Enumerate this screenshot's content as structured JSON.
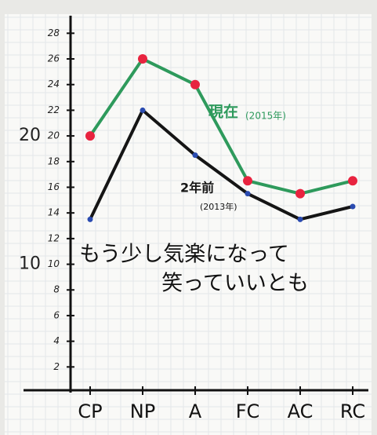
{
  "chart_data": {
    "type": "line",
    "categories": [
      "CP",
      "NP",
      "A",
      "FC",
      "AC",
      "RC"
    ],
    "series": [
      {
        "name": "現在",
        "period_label": "(2015年)",
        "color": "#2e9a5c",
        "marker_color": "#e8233f",
        "values": [
          20,
          26,
          24,
          16.5,
          15.5,
          16.5
        ]
      },
      {
        "name": "2年前",
        "period_label": "(2013年)",
        "color": "#151515",
        "marker_color": "#2a4bb0",
        "values": [
          13.5,
          22,
          18.5,
          15.5,
          13.5,
          14.5
        ]
      }
    ],
    "ylim": [
      0,
      29
    ],
    "yticks": [
      2,
      4,
      6,
      8,
      10,
      12,
      14,
      16,
      18,
      20,
      22,
      24,
      26,
      28
    ],
    "major_yticks": [
      10,
      20
    ],
    "annotations": [
      "もう少し気楽になって",
      "笑っていいとも"
    ],
    "grid": true
  }
}
